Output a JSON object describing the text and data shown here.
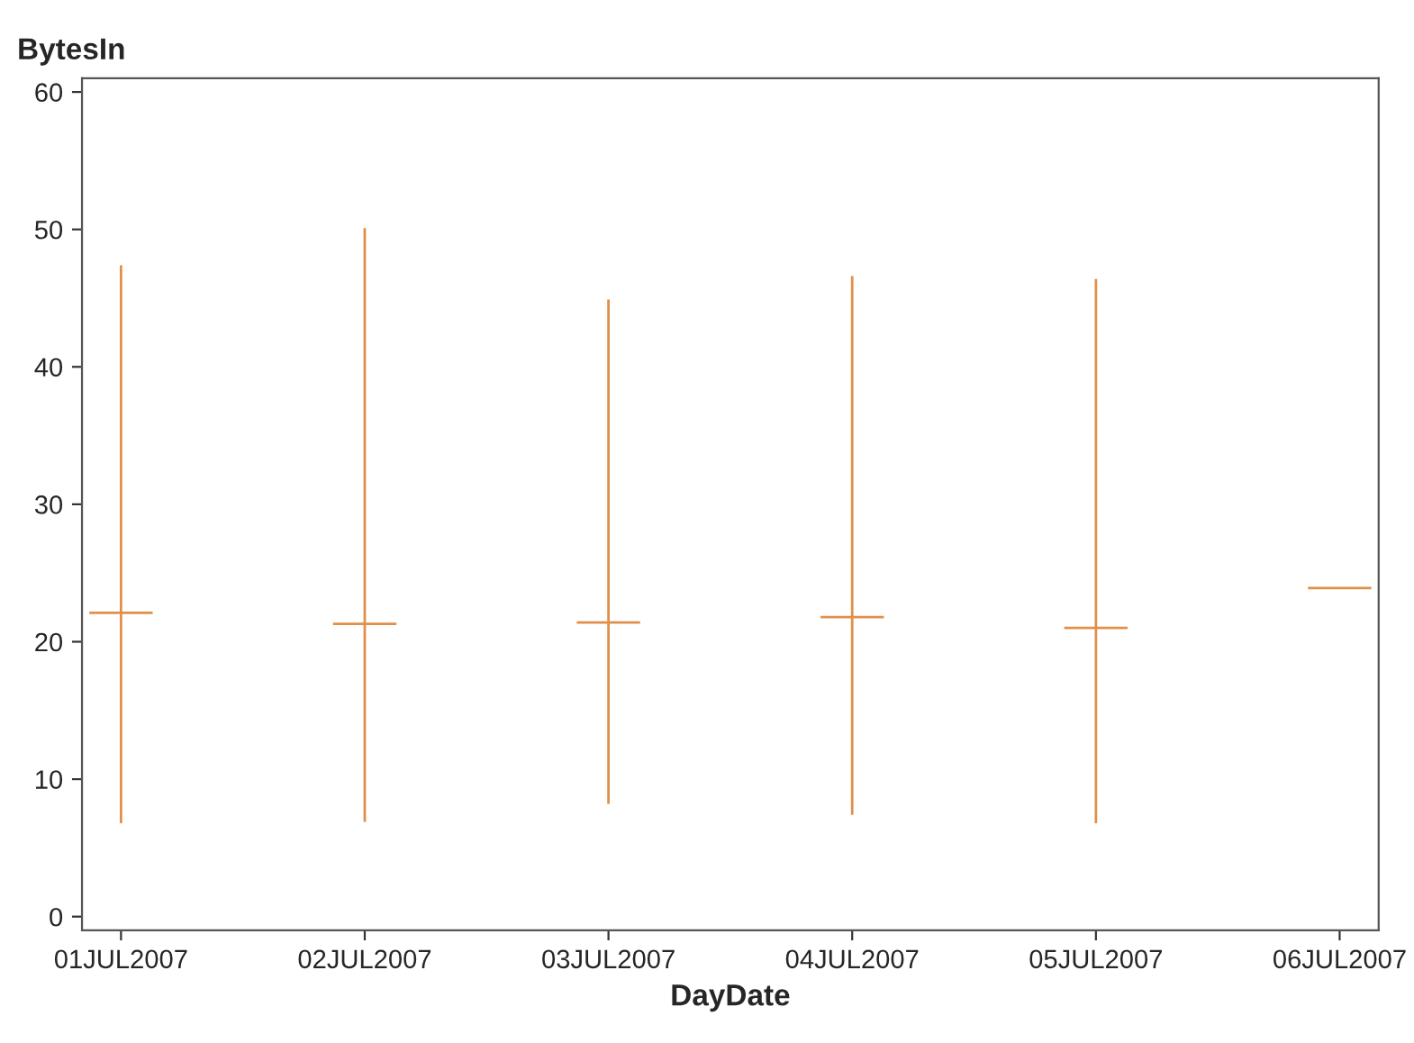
{
  "chart_data": {
    "type": "candlestick",
    "xlabel": "DayDate",
    "ylabel": "BytesIn",
    "categories": [
      "01JUL2007",
      "02JUL2007",
      "03JUL2007",
      "04JUL2007",
      "05JUL2007",
      "06JUL2007"
    ],
    "ohlc": [
      [
        22.1,
        47.4,
        6.8,
        22.1
      ],
      [
        21.3,
        50.1,
        6.9,
        21.3
      ],
      [
        21.4,
        44.9,
        8.2,
        21.4
      ],
      [
        21.8,
        46.6,
        7.4,
        21.8
      ],
      [
        21.0,
        46.4,
        6.8,
        21.0
      ],
      [
        23.9,
        23.9,
        23.9,
        23.9
      ]
    ],
    "color": "#e0904a",
    "ylim": [
      -1,
      61
    ],
    "yticks": [
      0,
      10,
      20,
      30,
      40,
      50,
      60
    ],
    "grid": false
  }
}
